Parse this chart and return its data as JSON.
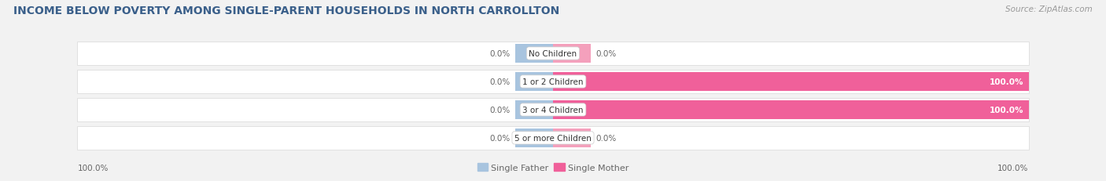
{
  "title": "INCOME BELOW POVERTY AMONG SINGLE-PARENT HOUSEHOLDS IN NORTH CARROLLTON",
  "source": "Source: ZipAtlas.com",
  "categories": [
    "No Children",
    "1 or 2 Children",
    "3 or 4 Children",
    "5 or more Children"
  ],
  "single_father": [
    0.0,
    0.0,
    0.0,
    0.0
  ],
  "single_mother": [
    0.0,
    100.0,
    100.0,
    0.0
  ],
  "father_color": "#a8c4df",
  "mother_color_light": "#f4a0bc",
  "mother_color_full": "#f0609a",
  "bg_color": "#f2f2f2",
  "bar_bg_color": "#ffffff",
  "bar_border_color": "#d8d8d8",
  "title_color": "#3a5f8a",
  "source_color": "#999999",
  "label_color": "#555555",
  "value_color": "#666666",
  "title_fontsize": 10,
  "source_fontsize": 7.5,
  "cat_fontsize": 7.5,
  "val_fontsize": 7.5,
  "legend_fontsize": 8,
  "stub_pct": 8,
  "left_axis_label": "100.0%",
  "right_axis_label": "100.0%"
}
